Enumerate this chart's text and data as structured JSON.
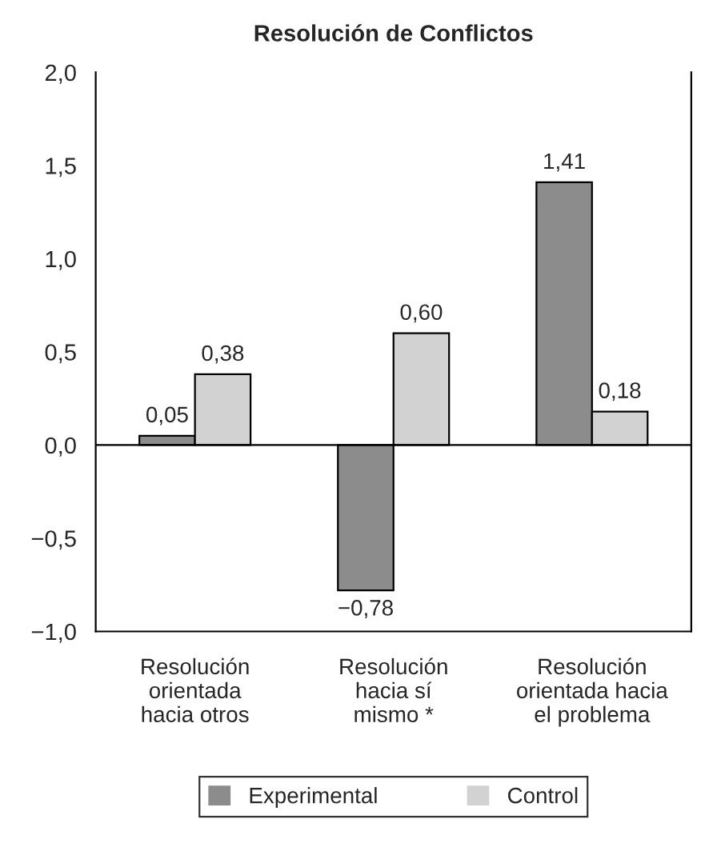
{
  "chart_data": {
    "type": "bar",
    "title": "Resolución de Conflictos",
    "categories": [
      "Resolución\norientada\nhacia otros",
      "Resolución\nhacia sí\nmismo *",
      "Resolución\norientada hacia\nel problema"
    ],
    "series": [
      {
        "name": "Experimental",
        "color": "#8c8c8c",
        "values": [
          0.05,
          -0.78,
          1.41
        ],
        "value_labels": [
          "0,05",
          "−0,78",
          "1,41"
        ]
      },
      {
        "name": "Control",
        "color": "#d2d2d2",
        "values": [
          0.38,
          0.6,
          0.18
        ],
        "value_labels": [
          "0,38",
          "0,60",
          "0,18"
        ]
      }
    ],
    "ylim": [
      -1.0,
      2.0
    ],
    "yticks": [
      {
        "value": -1.0,
        "label": "−1,0"
      },
      {
        "value": -0.5,
        "label": "−0,5"
      },
      {
        "value": 0.0,
        "label": "0,0"
      },
      {
        "value": 0.5,
        "label": "0,5"
      },
      {
        "value": 1.0,
        "label": "1,0"
      },
      {
        "value": 1.5,
        "label": "1,5"
      },
      {
        "value": 2.0,
        "label": "2,0"
      }
    ],
    "ref_lines": [
      {
        "axis": "y",
        "value": 0,
        "color": "#000000"
      }
    ],
    "grid": false,
    "legend": "bottom"
  }
}
